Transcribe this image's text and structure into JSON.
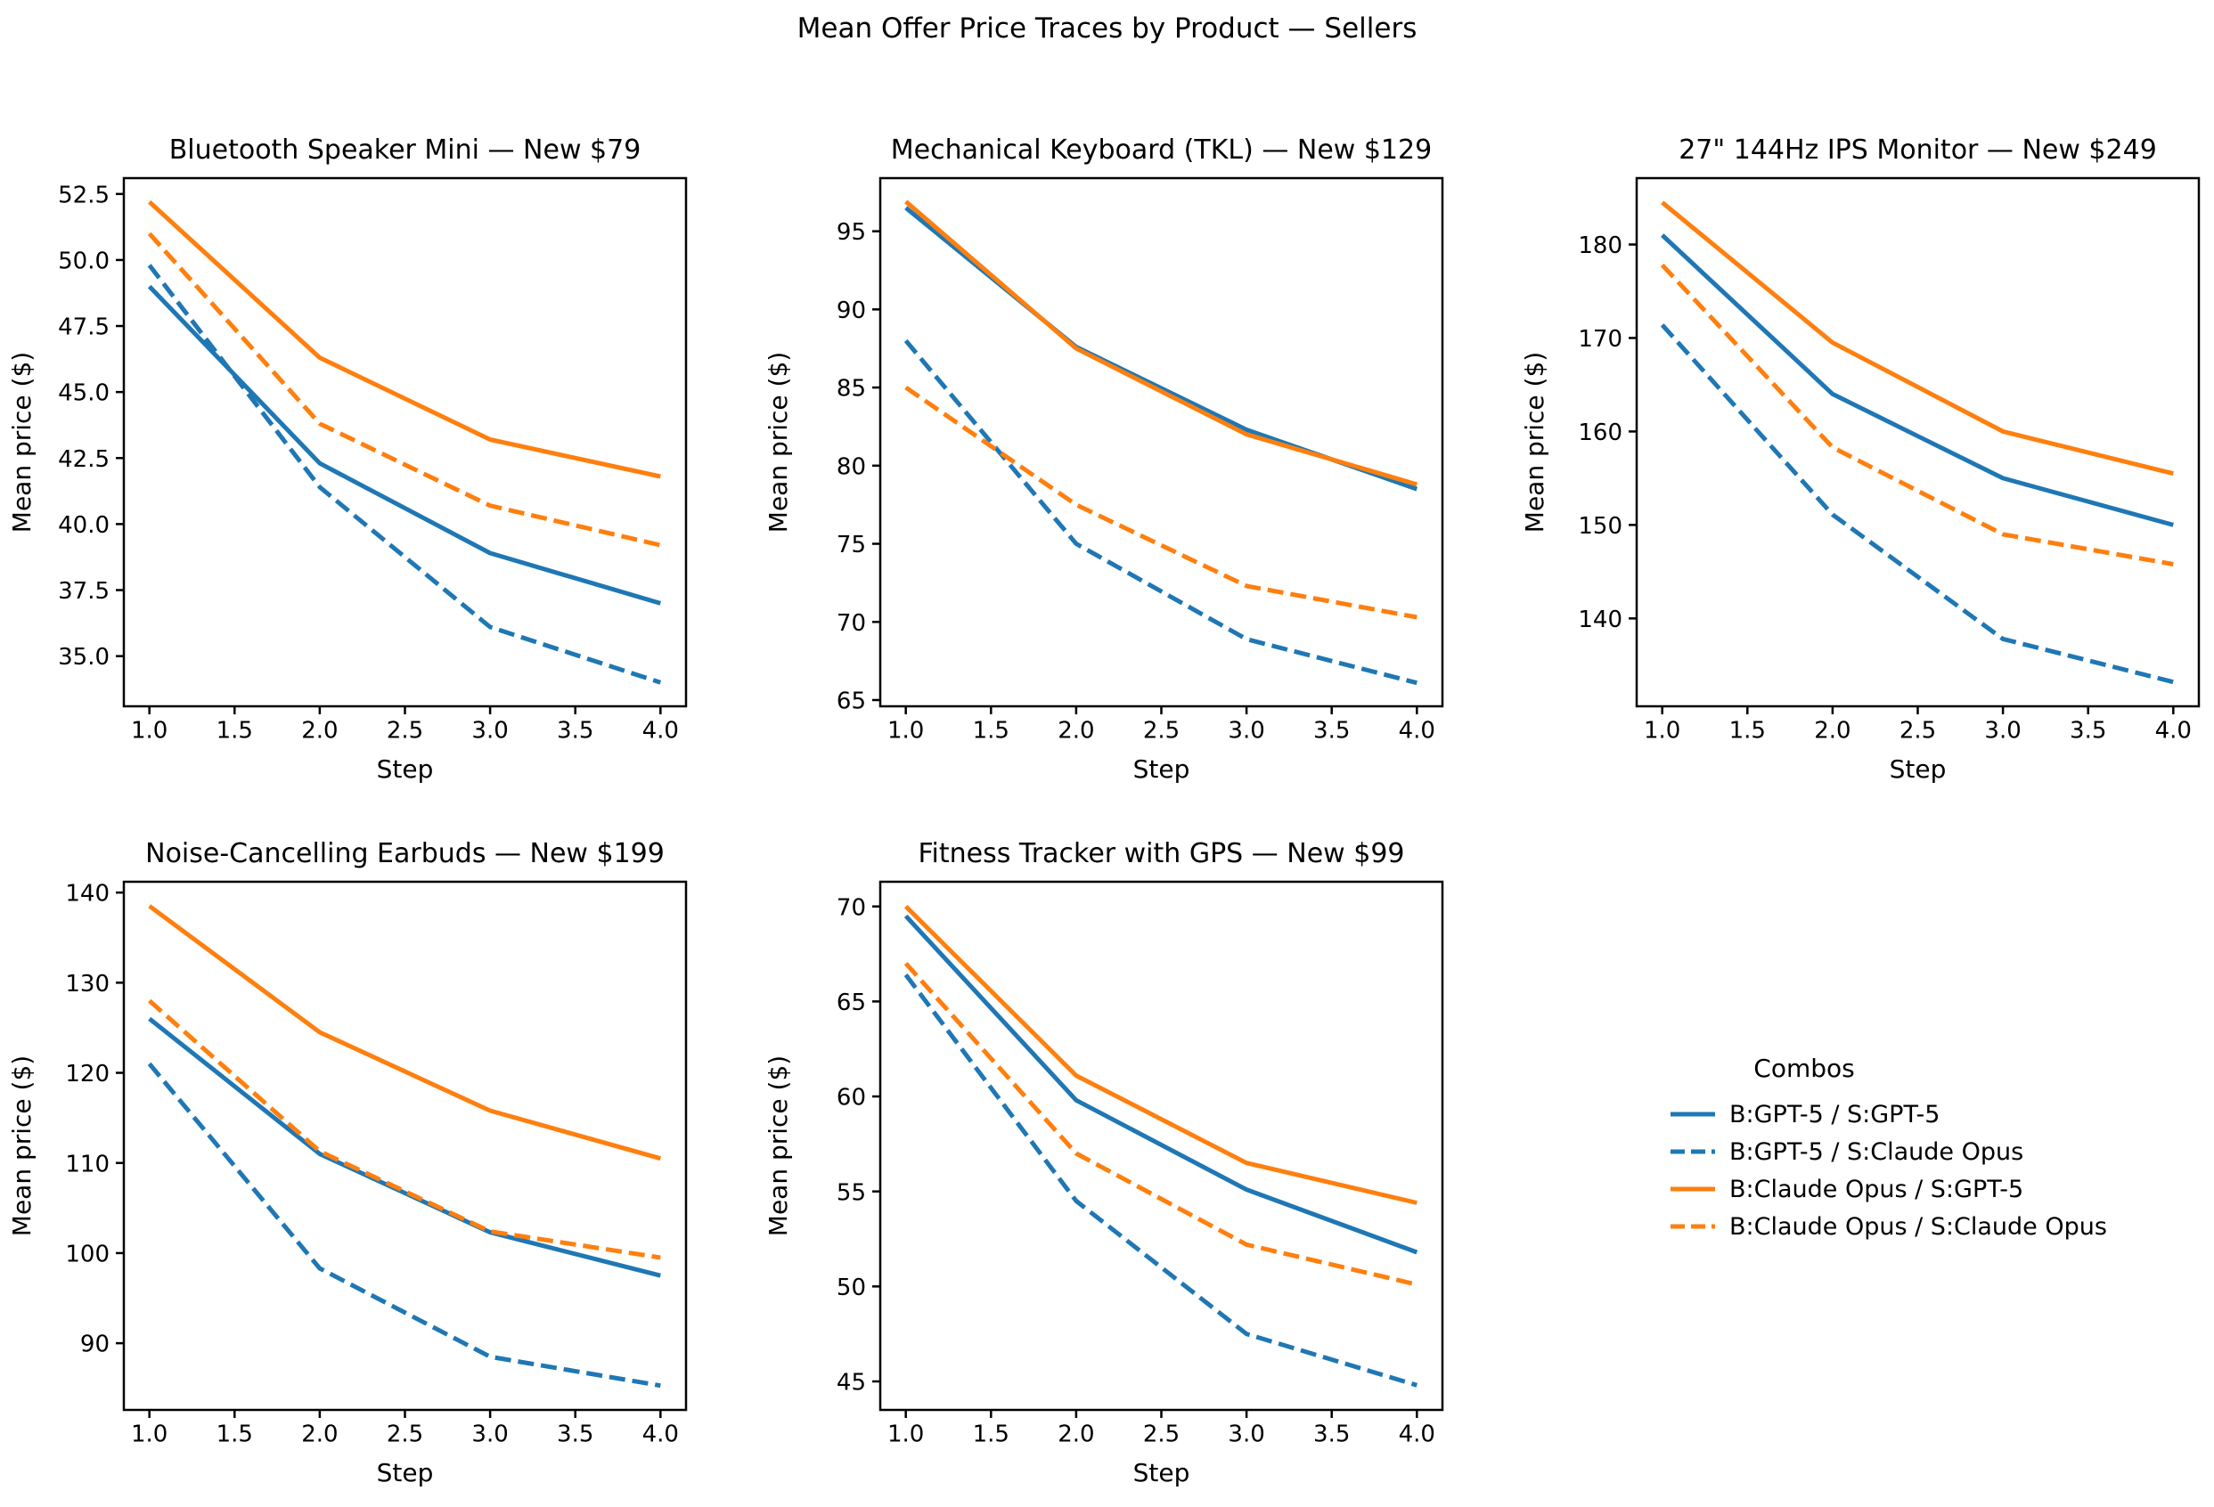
{
  "figure_title": "Mean Offer Price Traces by Product — Sellers",
  "axis": {
    "xlabel": "Step",
    "ylabel": "Mean price ($)",
    "x": [
      1,
      2,
      3,
      4
    ],
    "xlim": [
      0.85,
      4.15
    ],
    "xticks": [
      1.0,
      1.5,
      2.0,
      2.5,
      3.0,
      3.5,
      4.0
    ],
    "grid": false
  },
  "colors": {
    "blue": "#1f77b4",
    "orange": "#ff7f0e",
    "text": "#000000"
  },
  "legend": {
    "title": "Combos",
    "position": "bottom-right-cell",
    "items": [
      {
        "label": "B:GPT-5 / S:GPT-5",
        "color": "#1f77b4",
        "dash": false
      },
      {
        "label": "B:GPT-5 / S:Claude Opus",
        "color": "#1f77b4",
        "dash": true
      },
      {
        "label": "B:Claude Opus / S:GPT-5",
        "color": "#ff7f0e",
        "dash": false
      },
      {
        "label": "B:Claude Opus / S:Claude Opus",
        "color": "#ff7f0e",
        "dash": true
      }
    ]
  },
  "chart_data": [
    {
      "type": "line",
      "title": "Bluetooth Speaker Mini — New $79",
      "xlabel": "Step",
      "ylabel": "Mean price ($)",
      "x": [
        1,
        2,
        3,
        4
      ],
      "ylim": [
        33.1,
        53.1
      ],
      "yticks": [
        35.0,
        37.5,
        40.0,
        42.5,
        45.0,
        47.5,
        50.0,
        52.5
      ],
      "ytick_decimals": 1,
      "series": [
        {
          "name": "B:GPT-5 / S:GPT-5",
          "values": [
            49.0,
            42.3,
            38.9,
            37.0
          ]
        },
        {
          "name": "B:GPT-5 / S:Claude Opus",
          "values": [
            49.8,
            41.4,
            36.1,
            34.0
          ]
        },
        {
          "name": "B:Claude Opus / S:GPT-5",
          "values": [
            52.2,
            46.3,
            43.2,
            41.8
          ]
        },
        {
          "name": "B:Claude Opus / S:Claude Opus",
          "values": [
            51.0,
            43.8,
            40.7,
            39.2
          ]
        }
      ]
    },
    {
      "type": "line",
      "title": "Mechanical Keyboard (TKL) — New $129",
      "xlabel": "Step",
      "ylabel": "Mean price ($)",
      "x": [
        1,
        2,
        3,
        4
      ],
      "ylim": [
        64.6,
        98.4
      ],
      "yticks": [
        65,
        70,
        75,
        80,
        85,
        90,
        95
      ],
      "ytick_decimals": 0,
      "series": [
        {
          "name": "B:GPT-5 / S:GPT-5",
          "values": [
            96.5,
            87.6,
            82.3,
            78.5
          ]
        },
        {
          "name": "B:GPT-5 / S:Claude Opus",
          "values": [
            88.0,
            75.0,
            68.9,
            66.1
          ]
        },
        {
          "name": "B:Claude Opus / S:GPT-5",
          "values": [
            96.9,
            87.5,
            82.0,
            78.8
          ]
        },
        {
          "name": "B:Claude Opus / S:Claude Opus",
          "values": [
            85.0,
            77.5,
            72.3,
            70.3
          ]
        }
      ]
    },
    {
      "type": "line",
      "title": "27\" 144Hz IPS Monitor — New $249",
      "xlabel": "Step",
      "ylabel": "Mean price ($)",
      "x": [
        1,
        2,
        3,
        4
      ],
      "ylim": [
        130.6,
        187.1
      ],
      "yticks": [
        140,
        150,
        160,
        170,
        180
      ],
      "ytick_decimals": 0,
      "series": [
        {
          "name": "B:GPT-5 / S:GPT-5",
          "values": [
            181.0,
            164.0,
            155.0,
            150.0
          ]
        },
        {
          "name": "B:GPT-5 / S:Claude Opus",
          "values": [
            171.4,
            151.1,
            137.8,
            133.2
          ]
        },
        {
          "name": "B:Claude Opus / S:GPT-5",
          "values": [
            184.5,
            169.5,
            160.0,
            155.5
          ]
        },
        {
          "name": "B:Claude Opus / S:Claude Opus",
          "values": [
            177.8,
            158.3,
            149.0,
            145.8
          ]
        }
      ]
    },
    {
      "type": "line",
      "title": "Noise-Cancelling Earbuds — New $199",
      "xlabel": "Step",
      "ylabel": "Mean price ($)",
      "x": [
        1,
        2,
        3,
        4
      ],
      "ylim": [
        82.6,
        141.2
      ],
      "yticks": [
        90,
        100,
        110,
        120,
        130,
        140
      ],
      "ytick_decimals": 0,
      "series": [
        {
          "name": "B:GPT-5 / S:GPT-5",
          "values": [
            126.0,
            111.0,
            102.3,
            97.5
          ]
        },
        {
          "name": "B:GPT-5 / S:Claude Opus",
          "values": [
            121.0,
            98.3,
            88.5,
            85.3
          ]
        },
        {
          "name": "B:Claude Opus / S:GPT-5",
          "values": [
            138.5,
            124.5,
            115.8,
            110.5
          ]
        },
        {
          "name": "B:Claude Opus / S:Claude Opus",
          "values": [
            128.0,
            111.3,
            102.4,
            99.5
          ]
        }
      ]
    },
    {
      "type": "line",
      "title": "Fitness Tracker with GPS — New $99",
      "xlabel": "Step",
      "ylabel": "Mean price ($)",
      "x": [
        1,
        2,
        3,
        4
      ],
      "ylim": [
        43.5,
        71.3
      ],
      "yticks": [
        45,
        50,
        55,
        60,
        65,
        70
      ],
      "ytick_decimals": 0,
      "series": [
        {
          "name": "B:GPT-5 / S:GPT-5",
          "values": [
            69.5,
            59.8,
            55.1,
            51.8
          ]
        },
        {
          "name": "B:GPT-5 / S:Claude Opus",
          "values": [
            66.4,
            54.5,
            47.5,
            44.8
          ]
        },
        {
          "name": "B:Claude Opus / S:GPT-5",
          "values": [
            70.0,
            61.1,
            56.5,
            54.4
          ]
        },
        {
          "name": "B:Claude Opus / S:Claude Opus",
          "values": [
            67.0,
            57.0,
            52.2,
            50.1
          ]
        }
      ]
    }
  ]
}
